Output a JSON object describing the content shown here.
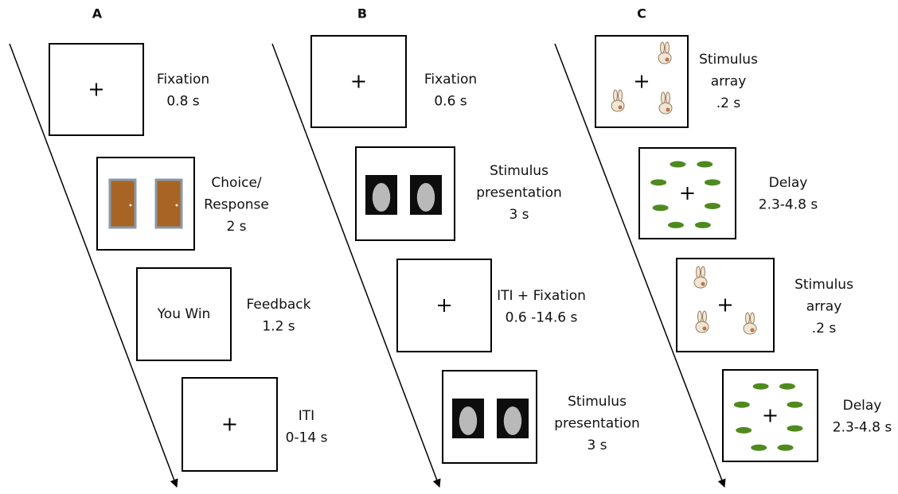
{
  "panels": [
    {
      "label": "A",
      "steps": [
        {
          "lines": [
            "Fixation",
            "0.8 s"
          ]
        },
        {
          "lines": [
            "Choice/",
            "Response",
            "2 s"
          ]
        },
        {
          "screen_text": "You Win",
          "lines": [
            "Feedback",
            "1.2 s"
          ]
        },
        {
          "lines": [
            "ITI",
            "0-14 s"
          ]
        }
      ]
    },
    {
      "label": "B",
      "steps": [
        {
          "lines": [
            "Fixation",
            "0.6 s"
          ]
        },
        {
          "lines": [
            "Stimulus",
            "presentation",
            "3 s"
          ]
        },
        {
          "lines": [
            "ITI + Fixation",
            "0.6 -14.6 s"
          ]
        },
        {
          "lines": [
            "Stimulus",
            "presentation",
            "3 s"
          ]
        }
      ]
    },
    {
      "label": "C",
      "steps": [
        {
          "lines": [
            "Stimulus",
            "array",
            ".2 s"
          ]
        },
        {
          "lines": [
            "Delay",
            "2.3-4.8 s"
          ]
        },
        {
          "lines": [
            "Stimulus",
            "array",
            ".2 s"
          ]
        },
        {
          "lines": [
            "Delay",
            "2.3-4.8 s"
          ]
        }
      ]
    }
  ]
}
